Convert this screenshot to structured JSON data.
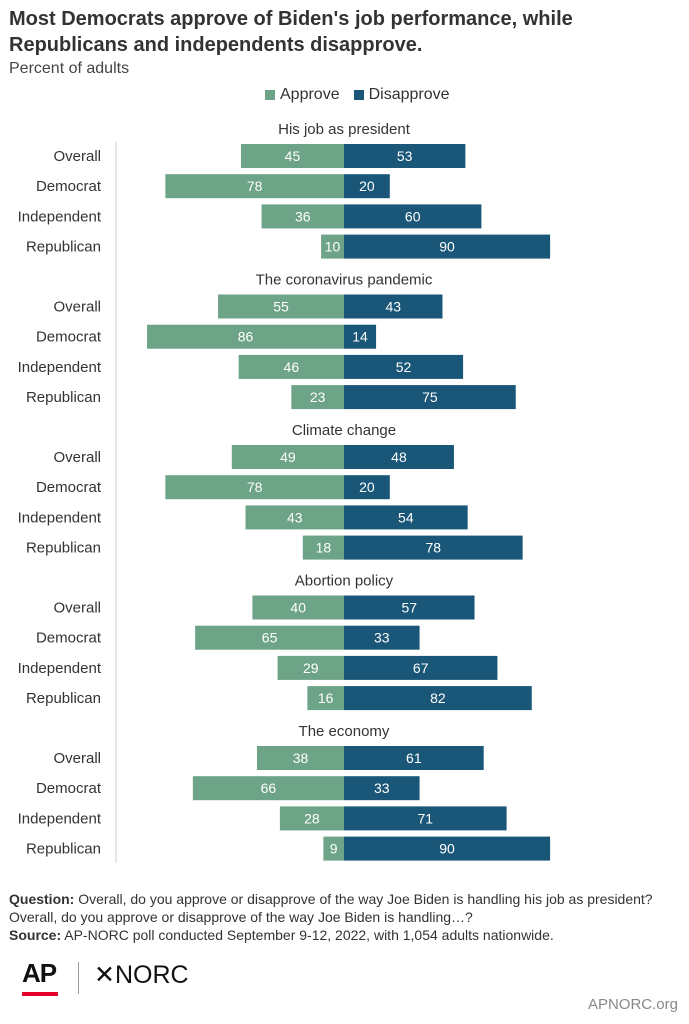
{
  "title": "Most Democrats approve of Biden's job performance, while Republicans and independents disapprove.",
  "subtitle": "Percent of adults",
  "legend": {
    "approve": "Approve",
    "disapprove": "Disapprove"
  },
  "colors": {
    "approve": "#6da387",
    "disapprove": "#195677",
    "axis": "#cccccc"
  },
  "chart_data": {
    "type": "bar",
    "orientation": "horizontal-diverging",
    "groups": [
      {
        "title": "His job as president",
        "categories": [
          "Overall",
          "Democrat",
          "Independent",
          "Republican"
        ],
        "approve": [
          45,
          78,
          36,
          10
        ],
        "disapprove": [
          53,
          20,
          60,
          90
        ]
      },
      {
        "title": "The coronavirus pandemic",
        "categories": [
          "Overall",
          "Democrat",
          "Independent",
          "Republican"
        ],
        "approve": [
          55,
          86,
          46,
          23
        ],
        "disapprove": [
          43,
          14,
          52,
          75
        ]
      },
      {
        "title": "Climate change",
        "categories": [
          "Overall",
          "Democrat",
          "Independent",
          "Republican"
        ],
        "approve": [
          49,
          78,
          43,
          18
        ],
        "disapprove": [
          48,
          20,
          54,
          78
        ]
      },
      {
        "title": "Abortion policy",
        "categories": [
          "Overall",
          "Democrat",
          "Independent",
          "Republican"
        ],
        "approve": [
          40,
          65,
          29,
          16
        ],
        "disapprove": [
          57,
          33,
          67,
          82
        ]
      },
      {
        "title": "The economy",
        "categories": [
          "Overall",
          "Democrat",
          "Independent",
          "Republican"
        ],
        "approve": [
          38,
          66,
          28,
          9
        ],
        "disapprove": [
          61,
          33,
          71,
          90
        ]
      }
    ],
    "series": [
      {
        "name": "Approve"
      },
      {
        "name": "Disapprove"
      }
    ],
    "legend_position": "top"
  },
  "footer": {
    "question_label": "Question:",
    "question_text": " Overall, do you approve or disapprove of the way Joe Biden is handling his job as president? Overall, do you approve or disapprove of the way Joe Biden is handling…?",
    "source_label": "Source:",
    "source_text": " AP-NORC poll conducted September 9-12, 2022, with 1,054 adults nationwide."
  },
  "logos": {
    "ap": "AP",
    "norc": "✕NORC"
  },
  "site": "APNORC.org"
}
